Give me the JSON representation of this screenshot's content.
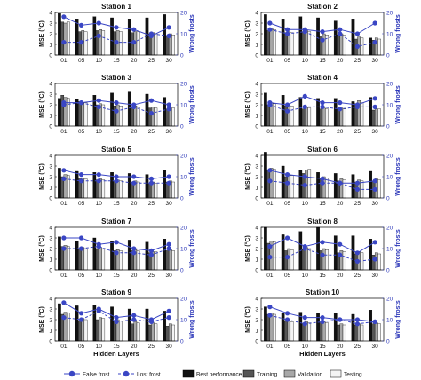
{
  "chart_data": [
    {
      "type": "bar",
      "title": "Station 1",
      "categories": [
        "01",
        "05",
        "10",
        "15",
        "20",
        "25",
        "30"
      ],
      "ylim": [
        0,
        4
      ],
      "y2lim": [
        0,
        20
      ],
      "series": [
        {
          "name": "Best performance",
          "values": [
            3.9,
            3.4,
            3.6,
            3.5,
            3.4,
            3.5,
            3.8
          ]
        },
        {
          "name": "Training",
          "values": [
            3.1,
            2.2,
            2.3,
            2.2,
            2.1,
            2.0,
            1.8
          ]
        },
        {
          "name": "Validation",
          "values": [
            3.0,
            2.3,
            2.4,
            2.3,
            2.2,
            2.1,
            2.0
          ]
        },
        {
          "name": "Testing",
          "values": [
            3.1,
            2.2,
            2.3,
            2.2,
            2.2,
            2.0,
            1.9
          ]
        }
      ],
      "lines": [
        {
          "name": "False frost",
          "values": [
            18,
            14,
            15,
            13,
            12,
            9,
            13
          ]
        },
        {
          "name": "Lost frost",
          "values": [
            6,
            6,
            9,
            6,
            6,
            10,
            9
          ]
        }
      ]
    },
    {
      "type": "bar",
      "title": "Station 2",
      "categories": [
        "01",
        "05",
        "10",
        "15",
        "20",
        "25",
        "30"
      ],
      "ylim": [
        0,
        4
      ],
      "y2lim": [
        0,
        20
      ],
      "series": [
        {
          "name": "Best performance",
          "values": [
            3.8,
            3.4,
            3.6,
            3.5,
            3.2,
            3.4,
            1.6
          ]
        },
        {
          "name": "Training",
          "values": [
            2.3,
            2.1,
            2.2,
            1.8,
            1.9,
            1.5,
            1.4
          ]
        },
        {
          "name": "Validation",
          "values": [
            2.5,
            2.2,
            2.3,
            2.0,
            2.0,
            1.7,
            1.6
          ]
        },
        {
          "name": "Testing",
          "values": [
            2.4,
            2.1,
            2.2,
            1.9,
            1.9,
            1.6,
            1.5
          ]
        }
      ],
      "lines": [
        {
          "name": "False frost",
          "values": [
            15,
            12,
            12,
            11,
            12,
            10,
            15
          ]
        },
        {
          "name": "Lost frost",
          "values": [
            12,
            10,
            11,
            7,
            10,
            4,
            6
          ]
        }
      ]
    },
    {
      "type": "bar",
      "title": "Station 3",
      "categories": [
        "01",
        "05",
        "10",
        "15",
        "20",
        "25",
        "30"
      ],
      "ylim": [
        0,
        4
      ],
      "y2lim": [
        0,
        20
      ],
      "series": [
        {
          "name": "Best performance",
          "values": [
            2.6,
            2.5,
            2.9,
            3.1,
            3.2,
            3.0,
            2.7
          ]
        },
        {
          "name": "Training",
          "values": [
            2.9,
            2.3,
            2.0,
            1.9,
            1.8,
            1.7,
            1.6
          ]
        },
        {
          "name": "Validation",
          "values": [
            2.7,
            2.2,
            2.1,
            2.0,
            1.9,
            1.8,
            1.7
          ]
        },
        {
          "name": "Testing",
          "values": [
            2.6,
            2.2,
            2.0,
            1.9,
            1.8,
            1.7,
            1.7
          ]
        }
      ],
      "lines": [
        {
          "name": "False frost",
          "values": [
            11,
            11,
            12,
            11,
            10,
            12,
            10
          ]
        },
        {
          "name": "Lost frost",
          "values": [
            10,
            11,
            9,
            7,
            9,
            6,
            8
          ]
        }
      ]
    },
    {
      "type": "bar",
      "title": "Station 4",
      "categories": [
        "01",
        "05",
        "10",
        "15",
        "20",
        "25",
        "30"
      ],
      "ylim": [
        0,
        4
      ],
      "y2lim": [
        0,
        20
      ],
      "series": [
        {
          "name": "Best performance",
          "values": [
            3.1,
            2.9,
            2.7,
            2.6,
            2.6,
            2.3,
            2.7
          ]
        },
        {
          "name": "Training",
          "values": [
            2.0,
            1.9,
            1.6,
            1.6,
            1.6,
            2.1,
            1.5
          ]
        },
        {
          "name": "Validation",
          "values": [
            2.2,
            2.0,
            1.8,
            1.7,
            1.7,
            2.4,
            1.6
          ]
        },
        {
          "name": "Testing",
          "values": [
            2.1,
            1.9,
            1.7,
            1.6,
            1.6,
            2.2,
            1.6
          ]
        }
      ],
      "lines": [
        {
          "name": "False frost",
          "values": [
            11,
            10,
            14,
            11,
            11,
            10,
            13
          ]
        },
        {
          "name": "Lost frost",
          "values": [
            10,
            7,
            9,
            9,
            8,
            9,
            9
          ]
        }
      ]
    },
    {
      "type": "bar",
      "title": "Station 5",
      "categories": [
        "01",
        "05",
        "10",
        "15",
        "20",
        "25",
        "30"
      ],
      "ylim": [
        0,
        4
      ],
      "y2lim": [
        0,
        20
      ],
      "series": [
        {
          "name": "Best performance",
          "values": [
            2.8,
            2.5,
            2.4,
            2.4,
            2.3,
            2.2,
            2.6
          ]
        },
        {
          "name": "Training",
          "values": [
            2.0,
            1.8,
            1.7,
            1.6,
            1.5,
            1.4,
            1.5
          ]
        },
        {
          "name": "Validation",
          "values": [
            2.2,
            1.9,
            1.8,
            1.7,
            1.6,
            1.5,
            1.6
          ]
        },
        {
          "name": "Testing",
          "values": [
            2.1,
            1.8,
            1.7,
            1.6,
            1.5,
            1.4,
            1.5
          ]
        }
      ],
      "lines": [
        {
          "name": "False frost",
          "values": [
            13,
            11,
            11,
            10,
            10,
            9,
            10
          ]
        },
        {
          "name": "Lost frost",
          "values": [
            9,
            8,
            8,
            8,
            7,
            7,
            7
          ]
        }
      ]
    },
    {
      "type": "bar",
      "title": "Station 6",
      "categories": [
        "01",
        "05",
        "10",
        "15",
        "20",
        "25",
        "30"
      ],
      "ylim": [
        0,
        4
      ],
      "y2lim": [
        0,
        20
      ],
      "series": [
        {
          "name": "Best performance",
          "values": [
            4.3,
            3.0,
            2.6,
            2.4,
            2.3,
            2.2,
            2.5
          ]
        },
        {
          "name": "Training",
          "values": [
            2.6,
            2.0,
            2.3,
            1.8,
            1.6,
            1.5,
            1.6
          ]
        },
        {
          "name": "Validation",
          "values": [
            2.8,
            2.2,
            2.6,
            2.0,
            1.8,
            1.7,
            1.8
          ]
        },
        {
          "name": "Testing",
          "values": [
            2.7,
            2.1,
            2.7,
            1.9,
            1.7,
            1.6,
            1.7
          ]
        }
      ],
      "lines": [
        {
          "name": "False frost",
          "values": [
            13,
            11,
            10,
            9,
            7,
            7,
            8
          ]
        },
        {
          "name": "Lost frost",
          "values": [
            8,
            7,
            6,
            7,
            7,
            4,
            4
          ]
        }
      ]
    },
    {
      "type": "bar",
      "title": "Station 7",
      "categories": [
        "01",
        "05",
        "10",
        "15",
        "20",
        "25",
        "30"
      ],
      "ylim": [
        0,
        4
      ],
      "y2lim": [
        0,
        20
      ],
      "series": [
        {
          "name": "Best performance",
          "values": [
            3.1,
            2.7,
            3.0,
            2.7,
            2.8,
            2.6,
            2.9
          ]
        },
        {
          "name": "Training",
          "values": [
            2.2,
            2.0,
            2.0,
            1.8,
            1.8,
            1.6,
            1.8
          ]
        },
        {
          "name": "Validation",
          "values": [
            2.3,
            2.1,
            2.1,
            1.9,
            1.9,
            1.7,
            1.9
          ]
        },
        {
          "name": "Testing",
          "values": [
            2.2,
            2.0,
            2.0,
            1.8,
            1.8,
            1.7,
            1.8
          ]
        }
      ],
      "lines": [
        {
          "name": "False frost",
          "values": [
            15,
            15,
            12,
            13,
            10,
            9,
            12
          ]
        },
        {
          "name": "Lost frost",
          "values": [
            10,
            10,
            11,
            8,
            8,
            7,
            10
          ]
        }
      ]
    },
    {
      "type": "bar",
      "title": "Station 8",
      "categories": [
        "01",
        "05",
        "10",
        "15",
        "20",
        "25",
        "30"
      ],
      "ylim": [
        0,
        4
      ],
      "y2lim": [
        0,
        20
      ],
      "series": [
        {
          "name": "Best performance",
          "values": [
            4.0,
            3.3,
            3.6,
            4.0,
            3.2,
            3.2,
            2.9
          ]
        },
        {
          "name": "Training",
          "values": [
            2.5,
            1.8,
            1.9,
            1.8,
            1.6,
            1.5,
            1.4
          ]
        },
        {
          "name": "Validation",
          "values": [
            2.7,
            2.0,
            2.1,
            2.0,
            1.8,
            1.7,
            1.6
          ]
        },
        {
          "name": "Testing",
          "values": [
            2.6,
            1.9,
            2.0,
            1.9,
            1.7,
            1.6,
            1.5
          ]
        }
      ],
      "lines": [
        {
          "name": "False frost",
          "values": [
            11,
            15,
            11,
            13,
            12,
            8,
            13
          ]
        },
        {
          "name": "Lost frost",
          "values": [
            6,
            6,
            10,
            7,
            7,
            4,
            5
          ]
        }
      ]
    },
    {
      "type": "bar",
      "title": "Station 9",
      "categories": [
        "01",
        "05",
        "10",
        "15",
        "20",
        "25",
        "30"
      ],
      "ylim": [
        0,
        4
      ],
      "y2lim": [
        0,
        20
      ],
      "series": [
        {
          "name": "Best performance",
          "values": [
            3.5,
            3.3,
            3.4,
            3.2,
            3.0,
            3.0,
            2.8
          ]
        },
        {
          "name": "Training",
          "values": [
            2.5,
            1.9,
            2.0,
            1.8,
            1.6,
            1.5,
            1.4
          ]
        },
        {
          "name": "Validation",
          "values": [
            2.7,
            2.1,
            2.2,
            2.0,
            1.8,
            1.7,
            1.6
          ]
        },
        {
          "name": "Testing",
          "values": [
            2.6,
            2.0,
            2.1,
            1.9,
            1.7,
            1.6,
            1.5
          ]
        }
      ],
      "lines": [
        {
          "name": "False frost",
          "values": [
            18,
            13,
            15,
            11,
            12,
            10,
            14
          ]
        },
        {
          "name": "Lost frost",
          "values": [
            11,
            10,
            14,
            9,
            10,
            9,
            11
          ]
        }
      ]
    },
    {
      "type": "bar",
      "title": "Station 10",
      "categories": [
        "01",
        "05",
        "10",
        "15",
        "20",
        "25",
        "30"
      ],
      "ylim": [
        0,
        4
      ],
      "y2lim": [
        0,
        20
      ],
      "series": [
        {
          "name": "Best performance",
          "values": [
            3.2,
            2.6,
            2.7,
            2.6,
            2.6,
            2.5,
            2.9
          ]
        },
        {
          "name": "Training",
          "values": [
            2.5,
            1.8,
            1.6,
            1.7,
            1.5,
            1.5,
            1.6
          ]
        },
        {
          "name": "Validation",
          "values": [
            2.6,
            1.9,
            1.8,
            1.8,
            1.6,
            1.6,
            1.7
          ]
        },
        {
          "name": "Testing",
          "values": [
            2.5,
            1.8,
            1.7,
            1.7,
            1.5,
            1.5,
            1.6
          ]
        }
      ],
      "lines": [
        {
          "name": "False frost",
          "values": [
            16,
            13,
            11,
            11,
            10,
            10,
            9
          ]
        },
        {
          "name": "Lost frost",
          "values": [
            12,
            10,
            8,
            9,
            10,
            8,
            9
          ]
        }
      ]
    }
  ],
  "axes": {
    "left_label": "MSE (°C)",
    "right_label": "Wrong frosts",
    "x_label": "Hidden Layers",
    "left_ticks": [
      "0",
      "1",
      "2",
      "3",
      "4"
    ],
    "right_ticks": [
      "0",
      "10",
      "20"
    ]
  },
  "legend": {
    "false_frost": "False frost",
    "lost_frost": "Lost frost",
    "best": "Best performance",
    "training": "Training",
    "validation": "Validation",
    "testing": "Testing"
  },
  "colors": {
    "best": "#111111",
    "training": "#555555",
    "validation": "#a8a8a8",
    "testing": "#f4f4f4",
    "false_frost": "#3a46c4",
    "lost_frost": "#3a46c4",
    "overlap_marker": "#b2386a",
    "axis_right": "#2a35b8"
  }
}
